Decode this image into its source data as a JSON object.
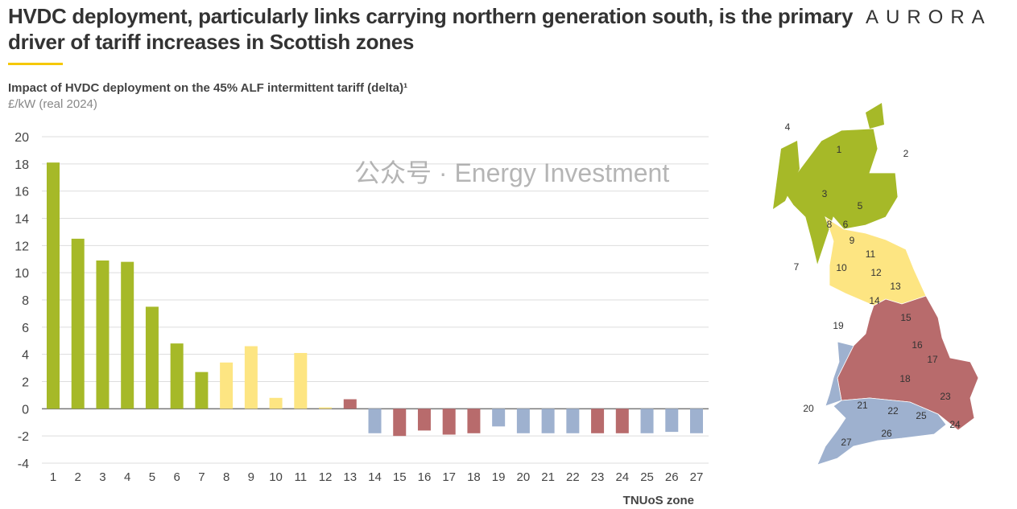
{
  "header": {
    "title": "HVDC deployment, particularly links carrying northern generation south, is the primary driver of tariff increases in Scottish zones",
    "logo": "AURORA"
  },
  "colors": {
    "green": "#a6b928",
    "yellow": "#fde582",
    "red": "#b86b6c",
    "blue": "#9eb1cf",
    "accent": "#f5c800"
  },
  "watermark": "公众号 · Energy Investment",
  "chart_data": {
    "type": "bar",
    "title": "Impact of HVDC deployment on the 45% ALF intermittent tariff (delta)¹",
    "ylabel": "£/kW (real 2024)",
    "xlabel": "TNUoS zone",
    "ylim": [
      -4,
      20
    ],
    "yticks": [
      -4,
      -2,
      0,
      2,
      4,
      6,
      8,
      10,
      12,
      14,
      16,
      18,
      20
    ],
    "grid": true,
    "categories": [
      "1",
      "2",
      "3",
      "4",
      "5",
      "6",
      "7",
      "8",
      "9",
      "10",
      "11",
      "12",
      "13",
      "14",
      "15",
      "16",
      "17",
      "18",
      "19",
      "20",
      "21",
      "22",
      "23",
      "24",
      "25",
      "26",
      "27"
    ],
    "values": [
      18.1,
      12.5,
      10.9,
      10.8,
      7.5,
      4.8,
      2.7,
      3.4,
      4.6,
      0.8,
      4.1,
      0.1,
      0.7,
      -1.8,
      -2.0,
      -1.6,
      -1.9,
      -1.8,
      -1.3,
      -1.8,
      -1.8,
      -1.8,
      -1.8,
      -1.8,
      -1.8,
      -1.7,
      -1.8
    ],
    "groups": [
      "green",
      "green",
      "green",
      "green",
      "green",
      "green",
      "green",
      "yellow",
      "yellow",
      "yellow",
      "yellow",
      "yellow",
      "red",
      "blue",
      "red",
      "red",
      "red",
      "red",
      "blue",
      "blue",
      "blue",
      "blue",
      "red",
      "red",
      "blue",
      "blue",
      "blue"
    ]
  },
  "map": {
    "labels": [
      "1",
      "2",
      "3",
      "4",
      "5",
      "6",
      "7",
      "8",
      "9",
      "10",
      "11",
      "12",
      "13",
      "14",
      "15",
      "16",
      "17",
      "18",
      "19",
      "20",
      "21",
      "22",
      "23",
      "24",
      "25",
      "26",
      "27"
    ]
  }
}
